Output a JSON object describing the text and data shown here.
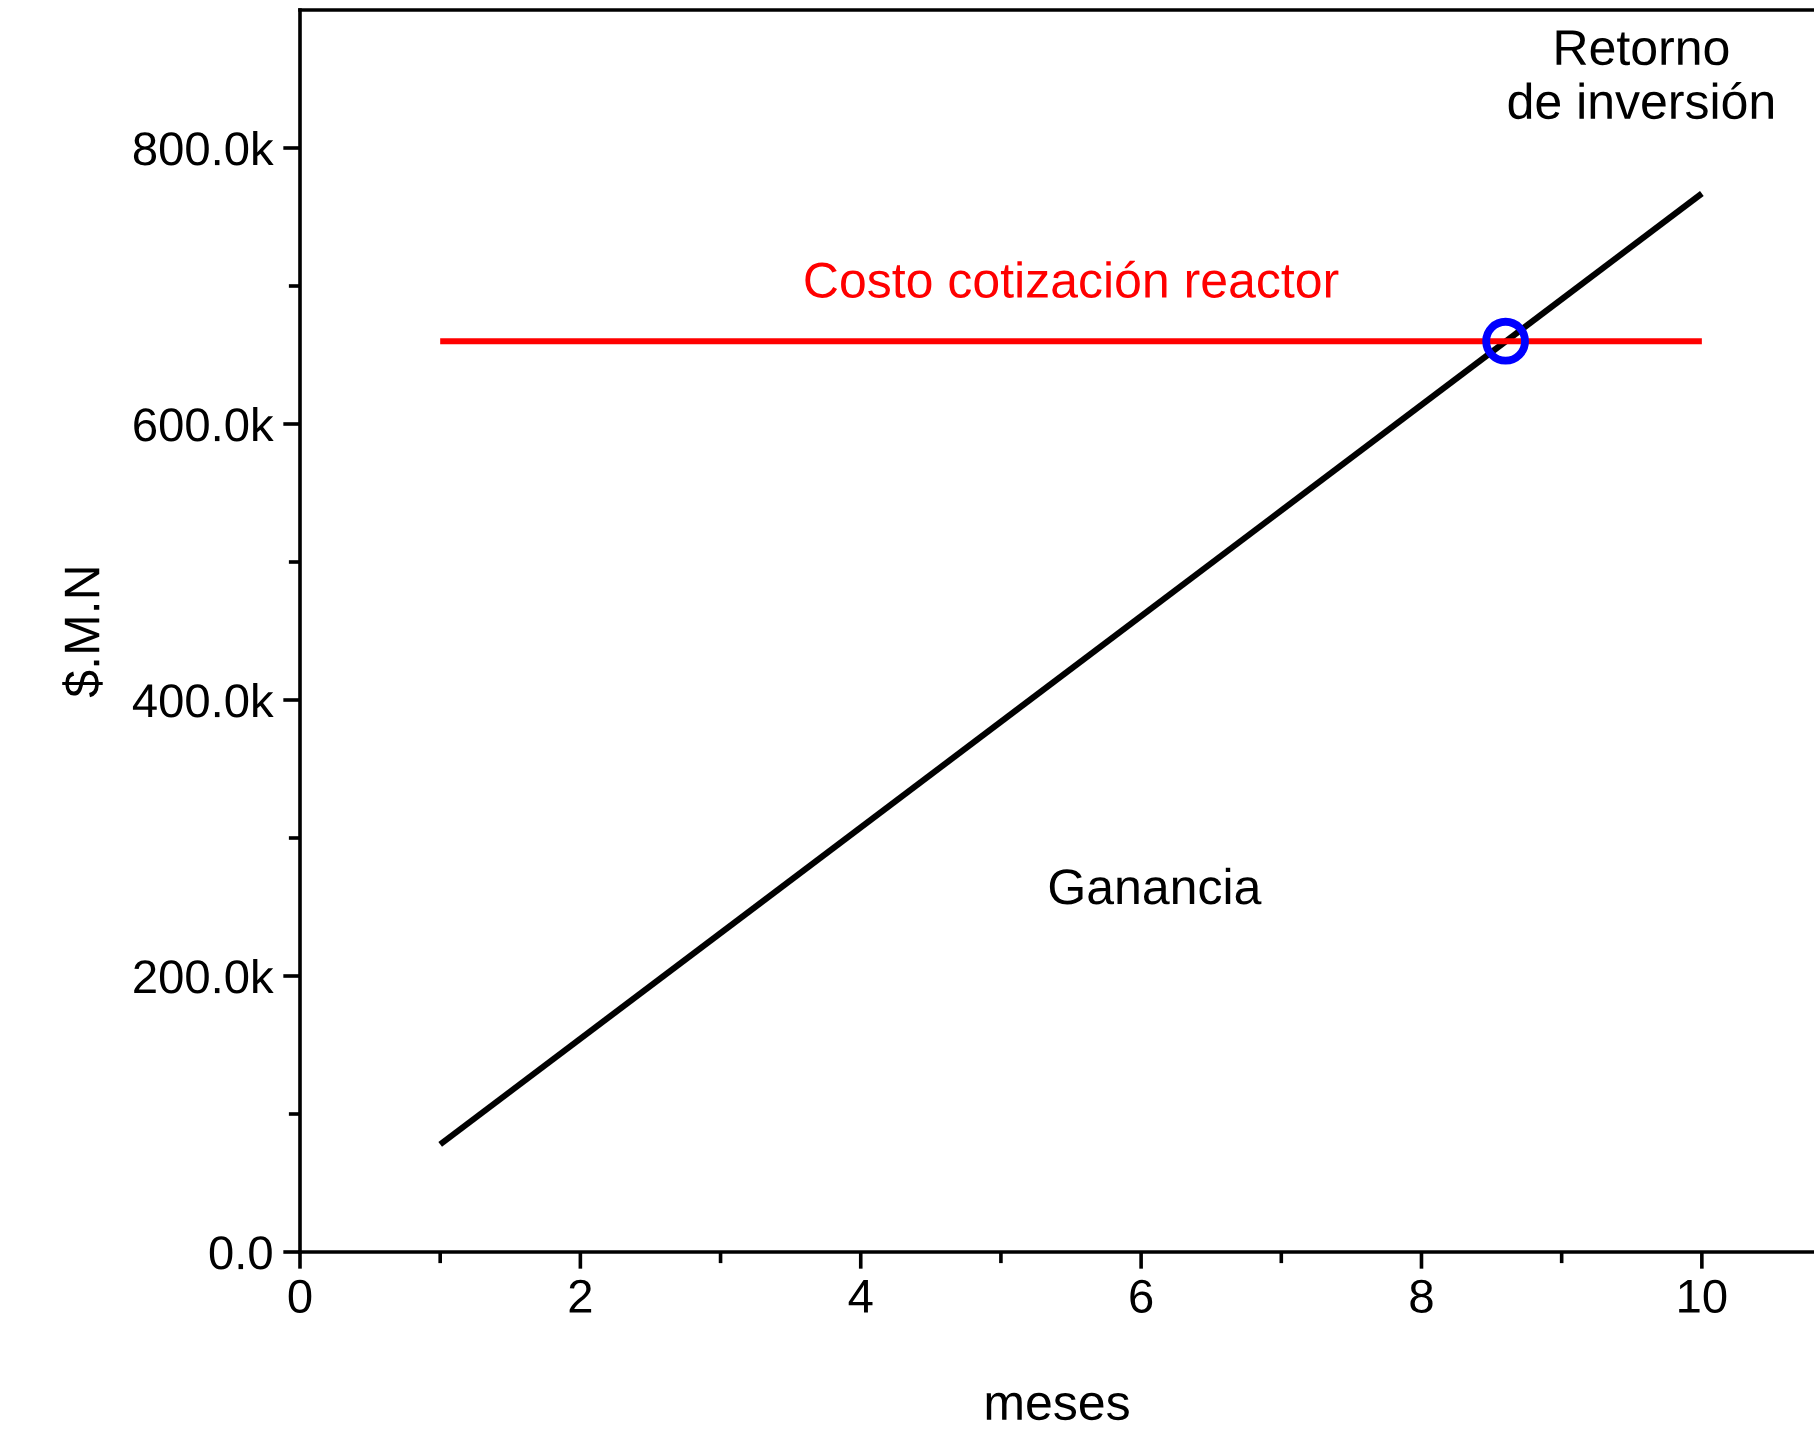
{
  "chart_data": {
    "type": "line",
    "xlabel": "meses",
    "ylabel": "$.M.N",
    "xlim": [
      0,
      10.8
    ],
    "ylim": [
      0,
      900000
    ],
    "xticks": [
      0,
      {
        "value": 1,
        "label": null
      },
      2,
      {
        "value": 3,
        "label": null
      },
      4,
      {
        "value": 5,
        "label": null
      },
      6,
      {
        "value": 7,
        "label": null
      },
      8,
      {
        "value": 9,
        "label": null
      },
      10
    ],
    "yticks": [
      {
        "value": 0,
        "label": "0.0"
      },
      {
        "value": 100000,
        "label": null
      },
      {
        "value": 200000,
        "label": "200.0k"
      },
      {
        "value": 300000,
        "label": null
      },
      {
        "value": 400000,
        "label": "400.0k"
      },
      {
        "value": 500000,
        "label": null
      },
      {
        "value": 600000,
        "label": "600.0k"
      },
      {
        "value": 700000,
        "label": null
      },
      {
        "value": 800000,
        "label": "800.0k"
      }
    ],
    "grid": false,
    "legend": false,
    "series": [
      {
        "name": "Ganancia",
        "color": "#000000",
        "x": [
          1,
          10
        ],
        "values": [
          78000,
          767000
        ]
      },
      {
        "name": "Costo cotización reactor",
        "color": "#ff0000",
        "x": [
          1,
          10
        ],
        "values": [
          660000,
          660000
        ]
      },
      {
        "type": "scatter",
        "marker": "circle",
        "color": "#0000ff",
        "x": [
          8.6
        ],
        "values": [
          660000
        ]
      }
    ],
    "annotations": [
      "Retorno\nde inversión"
    ]
  }
}
